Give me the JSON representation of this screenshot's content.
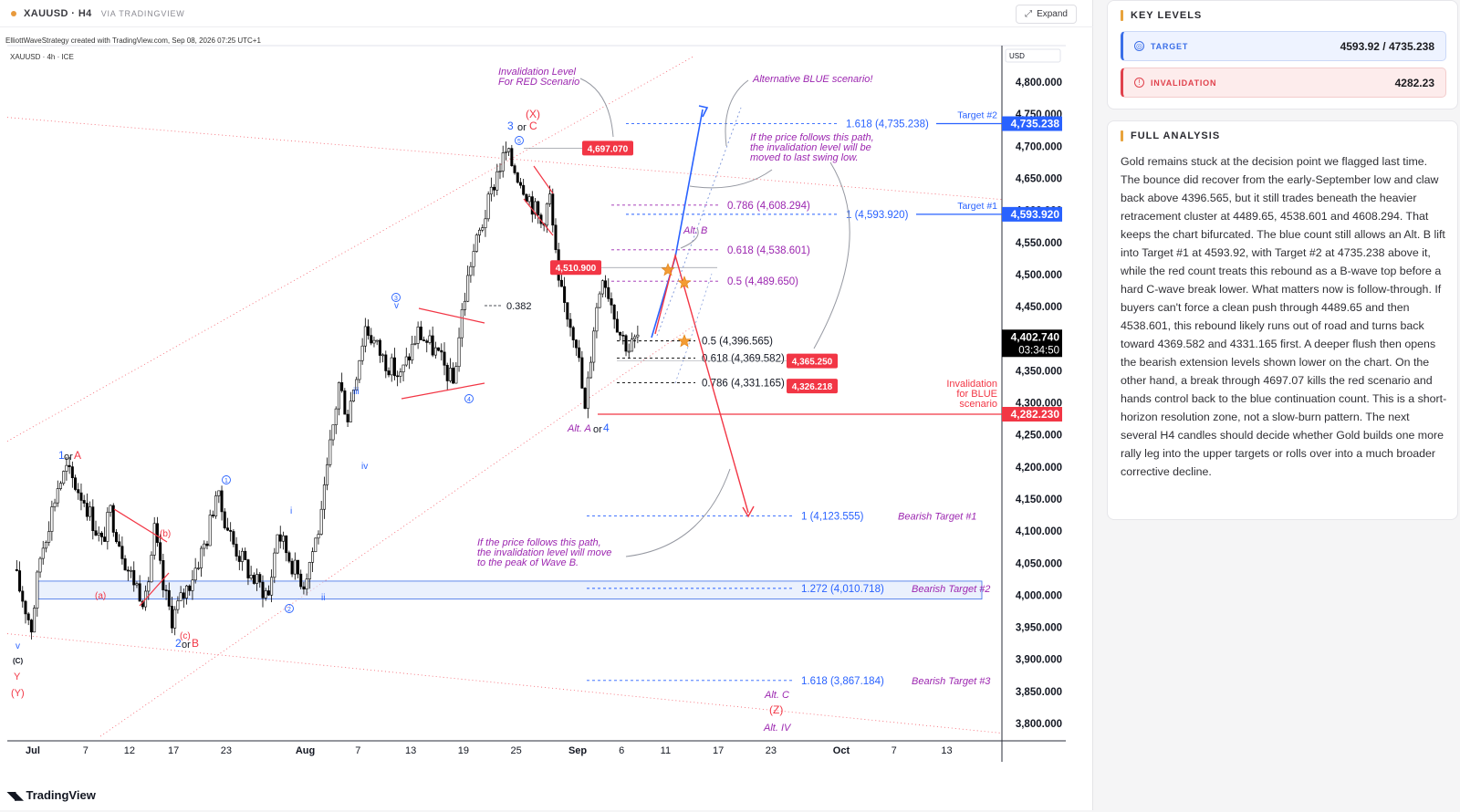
{
  "header": {
    "symbol_title": "XAUUSD · H4",
    "via": "VIA TRADINGVIEW",
    "expand_label": "Expand"
  },
  "chart_meta": {
    "attribution": "ElliottWaveStrategy created with TradingView.com, Sep 08, 2026 07:25 UTC+1",
    "symbol_line": "XAUUSD · 4h · ICE",
    "currency": "USD",
    "footer_brand": "TradingView"
  },
  "chart_data": {
    "type": "candlestick",
    "symbol": "XAUUSD",
    "timeframe": "4h",
    "current_price": 4402.74,
    "countdown": "03:34:50",
    "y_axis_ticks": [
      4800,
      4750,
      4700,
      4650,
      4600,
      4550,
      4500,
      4450,
      4400,
      4350,
      4300,
      4250,
      4200,
      4150,
      4100,
      4050,
      4000,
      3950,
      3900,
      3850,
      3800
    ],
    "y_axis_tick_labels": [
      "4,800.000",
      "4,750.000",
      "4,700.000",
      "4,650.000",
      "4,600.000",
      "4,550.000",
      "4,500.000",
      "4,450.000",
      "4,400.000",
      "4,350.000",
      "4,300.000",
      "4,250.000",
      "4,200.000",
      "4,150.000",
      "4,100.000",
      "4,050.000",
      "4,000.000",
      "3,950.000",
      "3,900.000",
      "3,850.000",
      "3,800.000"
    ],
    "ylim": [
      3780,
      4830
    ],
    "x_axis_ticks": [
      {
        "label": "Jul",
        "date": "2026-07-01",
        "bold": true
      },
      {
        "label": "7",
        "date": "2026-07-07"
      },
      {
        "label": "12",
        "date": "2026-07-12"
      },
      {
        "label": "17",
        "date": "2026-07-17"
      },
      {
        "label": "23",
        "date": "2026-07-23"
      },
      {
        "label": "Aug",
        "date": "2026-08-01",
        "bold": true
      },
      {
        "label": "7",
        "date": "2026-08-07"
      },
      {
        "label": "13",
        "date": "2026-08-13"
      },
      {
        "label": "19",
        "date": "2026-08-19"
      },
      {
        "label": "25",
        "date": "2026-08-25"
      },
      {
        "label": "Sep",
        "date": "2026-09-01",
        "bold": true
      },
      {
        "label": "6",
        "date": "2026-09-06"
      },
      {
        "label": "11",
        "date": "2026-09-11"
      },
      {
        "label": "17",
        "date": "2026-09-17"
      },
      {
        "label": "23",
        "date": "2026-09-23"
      },
      {
        "label": "Oct",
        "date": "2026-10-01",
        "bold": true
      },
      {
        "label": "7",
        "date": "2026-10-07"
      },
      {
        "label": "13",
        "date": "2026-10-13"
      }
    ],
    "price_path": [
      {
        "date": "2026-06-29",
        "close": 4040
      },
      {
        "date": "2026-07-01",
        "close": 3950
      },
      {
        "date": "2026-07-02",
        "close": 4060
      },
      {
        "date": "2026-07-04",
        "close": 4170
      },
      {
        "date": "2026-07-05",
        "close": 4195
      },
      {
        "date": "2026-07-07",
        "close": 4150
      },
      {
        "date": "2026-07-09",
        "close": 4080
      },
      {
        "date": "2026-07-10",
        "close": 4130
      },
      {
        "date": "2026-07-12",
        "close": 4040
      },
      {
        "date": "2026-07-14",
        "close": 3990
      },
      {
        "date": "2026-07-15",
        "close": 4100
      },
      {
        "date": "2026-07-16",
        "close": 4010
      },
      {
        "date": "2026-07-17",
        "close": 3965
      },
      {
        "date": "2026-07-19",
        "close": 4020
      },
      {
        "date": "2026-07-21",
        "close": 4090
      },
      {
        "date": "2026-07-22",
        "close": 4160
      },
      {
        "date": "2026-07-24",
        "close": 4080
      },
      {
        "date": "2026-07-26",
        "close": 4030
      },
      {
        "date": "2026-07-28",
        "close": 4000
      },
      {
        "date": "2026-07-29",
        "close": 4100
      },
      {
        "date": "2026-07-31",
        "close": 4040
      },
      {
        "date": "2026-08-01",
        "close": 4020
      },
      {
        "date": "2026-08-03",
        "close": 4120
      },
      {
        "date": "2026-08-04",
        "close": 4230
      },
      {
        "date": "2026-08-05",
        "close": 4330
      },
      {
        "date": "2026-08-06",
        "close": 4280
      },
      {
        "date": "2026-08-08",
        "close": 4420
      },
      {
        "date": "2026-08-10",
        "close": 4370
      },
      {
        "date": "2026-08-12",
        "close": 4340
      },
      {
        "date": "2026-08-14",
        "close": 4410
      },
      {
        "date": "2026-08-16",
        "close": 4380
      },
      {
        "date": "2026-08-18",
        "close": 4330
      },
      {
        "date": "2026-08-19",
        "close": 4440
      },
      {
        "date": "2026-08-20",
        "close": 4520
      },
      {
        "date": "2026-08-22",
        "close": 4610
      },
      {
        "date": "2026-08-23",
        "close": 4660
      },
      {
        "date": "2026-08-24",
        "close": 4690
      },
      {
        "date": "2026-08-26",
        "close": 4640
      },
      {
        "date": "2026-08-28",
        "close": 4580
      },
      {
        "date": "2026-08-29",
        "close": 4620
      },
      {
        "date": "2026-08-30",
        "close": 4480
      },
      {
        "date": "2026-09-01",
        "close": 4400
      },
      {
        "date": "2026-09-02",
        "close": 4285
      },
      {
        "date": "2026-09-03",
        "close": 4420
      },
      {
        "date": "2026-09-04",
        "close": 4505
      },
      {
        "date": "2026-09-06",
        "close": 4410
      },
      {
        "date": "2026-09-07",
        "close": 4385
      },
      {
        "date": "2026-09-08",
        "close": 4402.74
      }
    ],
    "horizontal_levels": [
      {
        "label": "1.618 (4,735.238)",
        "value": 4735.238,
        "tag": "Target #2"
      },
      {
        "label": "0.786 (4,608.294)",
        "value": 4608.294
      },
      {
        "label": "1 (4,593.920)",
        "value": 4593.92,
        "tag": "Target #1"
      },
      {
        "label": "0.618 (4,538.601)",
        "value": 4538.601
      },
      {
        "label": "0.5 (4,489.650)",
        "value": 4489.65
      },
      {
        "label": "0.5 (4,396.565)",
        "value": 4396.565
      },
      {
        "label": "0.618 (4,369.582)",
        "value": 4369.582
      },
      {
        "label": "0.786 (4,331.165)",
        "value": 4331.165
      },
      {
        "label": "1 (4,123.555)",
        "value": 4123.555,
        "tag": "Bearish Target #1"
      },
      {
        "label": "1.272 (4,010.718)",
        "value": 4010.718,
        "tag": "Bearish Target #2"
      },
      {
        "label": "1.618 (3,867.184)",
        "value": 3867.184,
        "tag": "Bearish Target #3"
      }
    ],
    "axis_badges": [
      {
        "label": "4,735.238",
        "value": 4735.238,
        "color": "#2962ff"
      },
      {
        "label": "4,593.920",
        "value": 4593.92,
        "color": "#2962ff"
      },
      {
        "label": "4,282.230",
        "value": 4282.23,
        "color": "#f23645"
      }
    ],
    "price_badges": [
      {
        "label": "4,697.070",
        "value": 4697.07
      },
      {
        "label": "4,510.900",
        "value": 4510.9
      },
      {
        "label": "4,365.250",
        "value": 4365.25
      },
      {
        "label": "4,326.218",
        "value": 4326.218
      }
    ],
    "invalidation_blue": {
      "label": "Invalidation for BLUE scenario",
      "value": 4282.23
    },
    "annotations": {
      "invalidation_red": "Invalidation Level For RED Scenario",
      "alt_blue": "Alternative BLUE scenario!",
      "blue_path_note": "If the price follows this path, the invalidation level will be moved to last swing low.",
      "red_path_note": "If the price follows this path, the invalidation level will move to the peak of Wave B.",
      "alt_b": "Alt. B",
      "ratio_0382": "0.382",
      "alt_a_or_4": "Alt. Aor4",
      "wave_3_or_c": "3 or C",
      "wave_x": "(X)",
      "wave_1_or_a": "1orA",
      "wave_2_or_b": "2orB",
      "alt_c": "Alt. C",
      "wave_z": "(Z)",
      "alt_iv": "Alt. IV",
      "wave_y": "Y",
      "wave_y_paren": "(Y)",
      "wave_c_paren": "(C)",
      "wave_v": "v",
      "wave_a_small": "(a)",
      "wave_b_small": "(b)",
      "wave_c_small": "(c)",
      "wave_i": "i",
      "wave_ii": "ii",
      "wave_iii": "iii",
      "wave_iv": "iv",
      "wave_v_small": "v",
      "circle_1": "1",
      "circle_2": "2",
      "circle_3": "3",
      "circle_4": "4",
      "circle_5": "5"
    },
    "colors": {
      "blue": "#2962ff",
      "red": "#f23645",
      "purple": "#9c27b0",
      "up_candle": "#ffffff",
      "down_candle": "#000000"
    }
  },
  "sidebar": {
    "key_levels_title": "KEY LEVELS",
    "target_label": "TARGET",
    "target_value": "4593.92 / 4735.238",
    "invalidation_label": "INVALIDATION",
    "invalidation_value": "4282.23",
    "full_analysis_title": "FULL ANALYSIS",
    "analysis_text": "Gold remains stuck at the decision point we flagged last time. The bounce did recover from the early-September low and claw back above 4396.565, but it still trades beneath the heavier retracement cluster at 4489.65, 4538.601 and 4608.294. That keeps the chart bifurcated. The blue count still allows an Alt. B lift into Target #1 at 4593.92, with Target #2 at 4735.238 above it, while the red count treats this rebound as a B-wave top before a hard C-wave break lower. What matters now is follow-through. If buyers can't force a clean push through 4489.65 and then 4538.601, this rebound likely runs out of road and turns back toward 4369.582 and 4331.165 first. A deeper flush then opens the bearish extension levels shown lower on the chart. On the other hand, a break through 4697.07 kills the red scenario and hands control back to the blue continuation count. This is a short-horizon resolution zone, not a slow-burn pattern. The next several H4 candles should decide whether Gold builds one more rally leg into the upper targets or rolls over into a much broader corrective decline."
  }
}
